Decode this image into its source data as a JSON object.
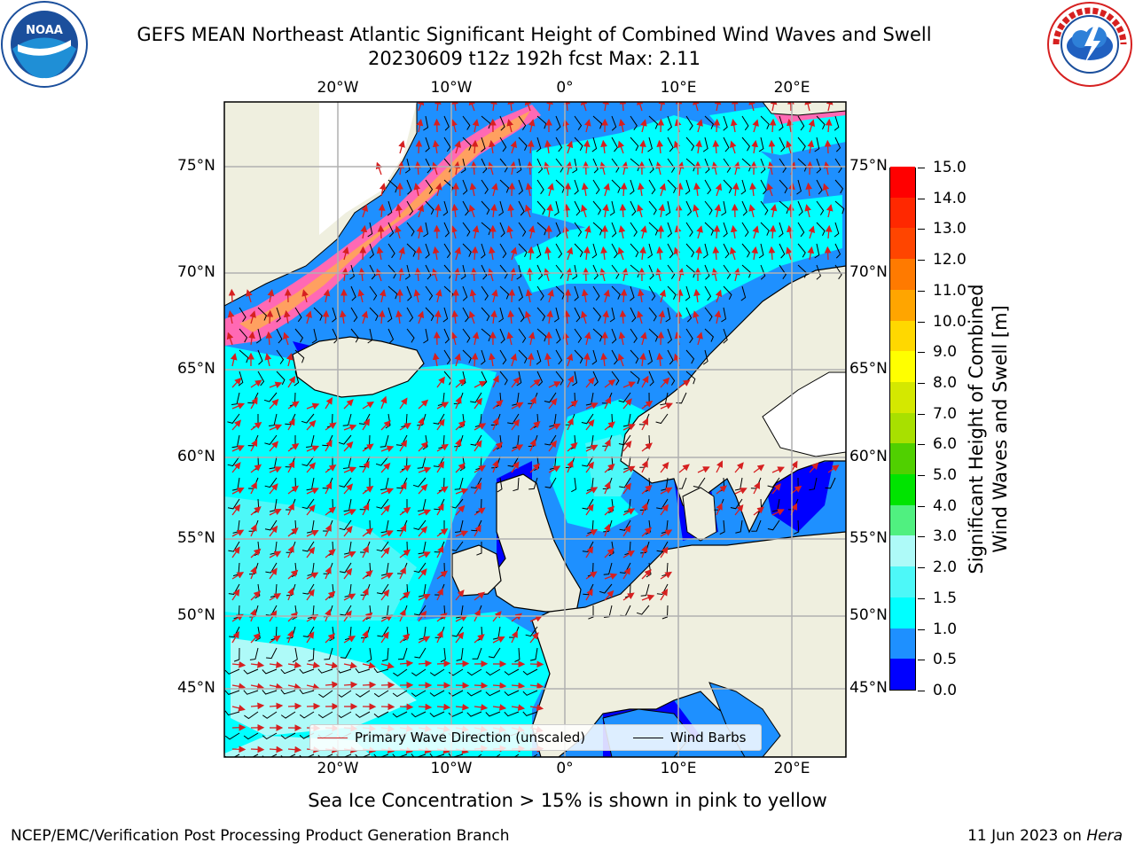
{
  "header": {
    "title_line1": "GEFS MEAN Northeast Atlantic Significant Height of Combined Wind Waves and Swell",
    "title_line2": "20230609 t12z 192h fcst   Max: 2.11"
  },
  "logos": {
    "left": {
      "icon": "noaa-logo-icon",
      "text": "NOAA",
      "ring_text": "NATIONAL OCEANIC AND ATMOSPHERIC ADMINISTRATION · U.S. DEPARTMENT OF COMMERCE"
    },
    "right": {
      "icon": "nws-logo-icon",
      "ring_text": "NATIONAL WEATHER SERVICE"
    }
  },
  "map": {
    "lon_labels_top": [
      "20°W",
      "10°W",
      "0°",
      "10°E",
      "20°E"
    ],
    "lon_labels_bottom": [
      "20°W",
      "10°W",
      "0°",
      "10°E",
      "20°E"
    ],
    "lat_labels_left": [
      "75°N",
      "70°N",
      "65°N",
      "60°N",
      "55°N",
      "50°N",
      "45°N"
    ],
    "lat_labels_right": [
      "75°N",
      "70°N",
      "65°N",
      "60°N",
      "55°N",
      "50°N",
      "45°N"
    ],
    "colors": {
      "land": "#efefdf",
      "ocean_default": "#1e90ff",
      "coast": "#000000",
      "grid": "#b0b0b0",
      "ice": "#ffffff"
    }
  },
  "legend": {
    "wave_label": "Primary Wave Direction (unscaled)",
    "wave_color": "#d62020",
    "wind_label": "Wind Barbs",
    "wind_color": "#000000"
  },
  "colorbar": {
    "ticks": [
      "0.0",
      "0.5",
      "1.0",
      "1.5",
      "2.0",
      "3.0",
      "4.0",
      "5.0",
      "6.0",
      "7.0",
      "8.0",
      "9.0",
      "10.0",
      "11.0",
      "12.0",
      "13.0",
      "14.0",
      "15.0"
    ],
    "colors": [
      "#0000ff",
      "#1e90ff",
      "#00ffff",
      "#4df8f8",
      "#aefaf8",
      "#50f080",
      "#00e400",
      "#50d000",
      "#a8e000",
      "#d4e800",
      "#ffff00",
      "#ffd800",
      "#ffa500",
      "#ff7a00",
      "#ff4500",
      "#ff2800",
      "#ff0000"
    ],
    "title_line1": "Significant Height of Combined",
    "title_line2": "Wind Waves and Swell [m]"
  },
  "subtitle": "Sea Ice Concentration > 15% is shown in pink to yellow",
  "footer": {
    "left": "NCEP/EMC/Verification Post Processing Product Generation Branch",
    "right_prefix": "11 Jun 2023 on ",
    "right_host": "Hera"
  }
}
